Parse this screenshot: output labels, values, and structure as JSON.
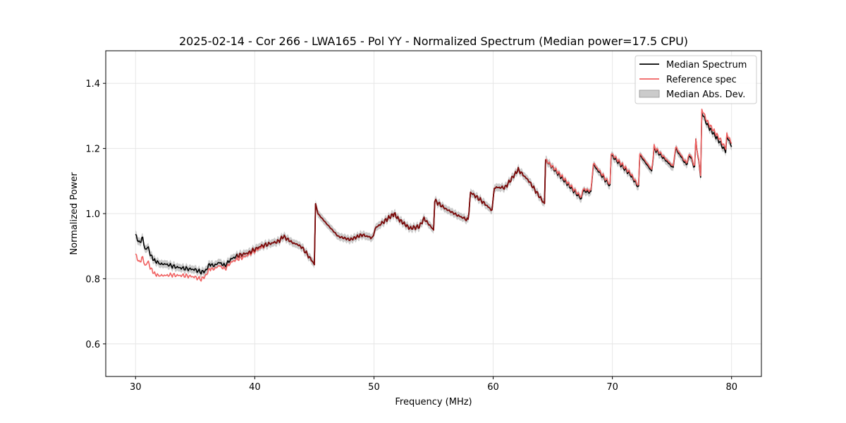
{
  "chart_data": {
    "type": "line",
    "title": "2025-02-14 - Cor 266 - LWA165 - Pol YY - Normalized Spectrum (Median power=17.5 CPU)",
    "xlabel": "Frequency (MHz)",
    "ylabel": "Normalized Power",
    "xlim": [
      27.5,
      82.5
    ],
    "ylim": [
      0.5,
      1.5
    ],
    "xticks": [
      30,
      40,
      50,
      60,
      70,
      80
    ],
    "yticks": [
      0.6,
      0.8,
      1.0,
      1.2,
      1.4
    ],
    "xtick_labels": [
      "30",
      "40",
      "50",
      "60",
      "70",
      "80"
    ],
    "ytick_labels": [
      "0.6",
      "0.8",
      "1.0",
      "1.2",
      "1.4"
    ],
    "grid": true,
    "legend_position": "top-right",
    "series": [
      {
        "name": "Median Spectrum",
        "color": "#000000",
        "kind": "line",
        "x": [
          30.0,
          30.3,
          30.6,
          30.8,
          31.0,
          31.3,
          31.6,
          31.9,
          32.1,
          32.5,
          33.0,
          33.5,
          34.0,
          34.5,
          35.0,
          35.5,
          35.9,
          36.2,
          36.6,
          37.0,
          37.5,
          38.0,
          38.5,
          39.0,
          39.5,
          40.0,
          40.5,
          41.0,
          41.5,
          42.0,
          42.4,
          42.8,
          43.2,
          43.6,
          44.0,
          44.5,
          45.0,
          45.1,
          45.3,
          46.0,
          47.0,
          48.0,
          49.0,
          49.9,
          50.1,
          51.0,
          51.7,
          52.0,
          53.0,
          53.8,
          54.2,
          55.0,
          55.1,
          56.0,
          57.0,
          57.9,
          58.1,
          59.0,
          59.9,
          60.1,
          61.0,
          61.8,
          62.1,
          63.0,
          64.3,
          64.4,
          65.5,
          66.5,
          67.4,
          67.5,
          68.2,
          68.4,
          69.8,
          69.9,
          71.5,
          72.2,
          72.3,
          73.3,
          73.5,
          75.1,
          75.3,
          76.2,
          76.5,
          76.9,
          77.0,
          77.4,
          77.5,
          78.0,
          79.0,
          79.5,
          79.6,
          80.0
        ],
        "y": [
          0.935,
          0.91,
          0.925,
          0.89,
          0.9,
          0.87,
          0.855,
          0.85,
          0.845,
          0.845,
          0.84,
          0.835,
          0.832,
          0.83,
          0.828,
          0.82,
          0.825,
          0.845,
          0.84,
          0.85,
          0.84,
          0.86,
          0.87,
          0.875,
          0.88,
          0.89,
          0.9,
          0.905,
          0.91,
          0.915,
          0.93,
          0.92,
          0.91,
          0.905,
          0.895,
          0.87,
          0.845,
          1.025,
          1.0,
          0.97,
          0.93,
          0.92,
          0.935,
          0.925,
          0.955,
          0.98,
          1.0,
          0.985,
          0.955,
          0.96,
          0.985,
          0.95,
          1.04,
          1.015,
          0.995,
          0.98,
          1.065,
          1.04,
          1.01,
          1.08,
          1.08,
          1.12,
          1.135,
          1.1,
          1.03,
          1.165,
          1.12,
          1.08,
          1.045,
          1.07,
          1.065,
          1.15,
          1.085,
          1.18,
          1.12,
          1.08,
          1.18,
          1.13,
          1.2,
          1.14,
          1.2,
          1.15,
          1.18,
          1.14,
          1.225,
          1.115,
          1.31,
          1.27,
          1.22,
          1.19,
          1.24,
          1.205
        ]
      },
      {
        "name": "Reference spec",
        "color": "#f06060",
        "kind": "line",
        "x": [
          30.0,
          30.3,
          30.6,
          30.8,
          31.0,
          31.3,
          31.6,
          31.9,
          32.1,
          32.5,
          33.0,
          33.5,
          34.0,
          34.5,
          35.0,
          35.5,
          35.9,
          36.2,
          36.6,
          37.0,
          37.5,
          38.0,
          38.5,
          39.0,
          39.5,
          40.0,
          40.5,
          41.0,
          41.5,
          42.0,
          42.4,
          42.8,
          43.2,
          43.6,
          44.0,
          44.5,
          45.0,
          45.1,
          45.3,
          46.0,
          47.0,
          48.0,
          49.0,
          49.9,
          50.1,
          51.0,
          51.7,
          52.0,
          53.0,
          53.8,
          54.2,
          55.0,
          55.1,
          56.0,
          57.0,
          57.9,
          58.1,
          59.0,
          59.9,
          60.1,
          61.0,
          61.8,
          62.1,
          63.0,
          64.3,
          64.4,
          65.5,
          66.5,
          67.4,
          67.5,
          68.2,
          68.4,
          69.8,
          69.9,
          71.5,
          72.2,
          72.3,
          73.3,
          73.5,
          75.1,
          75.3,
          76.2,
          76.5,
          76.9,
          77.0,
          77.4,
          77.5,
          78.0,
          79.0,
          79.5,
          79.6,
          80.0
        ],
        "y": [
          0.875,
          0.85,
          0.865,
          0.84,
          0.855,
          0.83,
          0.815,
          0.81,
          0.81,
          0.81,
          0.812,
          0.81,
          0.81,
          0.808,
          0.805,
          0.798,
          0.81,
          0.83,
          0.83,
          0.84,
          0.83,
          0.85,
          0.86,
          0.865,
          0.875,
          0.885,
          0.895,
          0.905,
          0.91,
          0.915,
          0.93,
          0.92,
          0.91,
          0.905,
          0.895,
          0.87,
          0.845,
          1.025,
          1.0,
          0.97,
          0.93,
          0.92,
          0.935,
          0.925,
          0.955,
          0.98,
          1.0,
          0.985,
          0.955,
          0.96,
          0.985,
          0.95,
          1.04,
          1.015,
          0.995,
          0.98,
          1.065,
          1.04,
          1.01,
          1.08,
          1.08,
          1.12,
          1.135,
          1.1,
          1.03,
          1.165,
          1.125,
          1.085,
          1.05,
          1.075,
          1.07,
          1.155,
          1.09,
          1.185,
          1.125,
          1.085,
          1.185,
          1.135,
          1.205,
          1.145,
          1.205,
          1.155,
          1.185,
          1.145,
          1.225,
          1.12,
          1.32,
          1.28,
          1.23,
          1.2,
          1.245,
          1.215
        ]
      },
      {
        "name": "Median Abs. Dev.",
        "color": "#a0a0a0",
        "kind": "band",
        "band_halfwidth": 0.012
      }
    ]
  }
}
